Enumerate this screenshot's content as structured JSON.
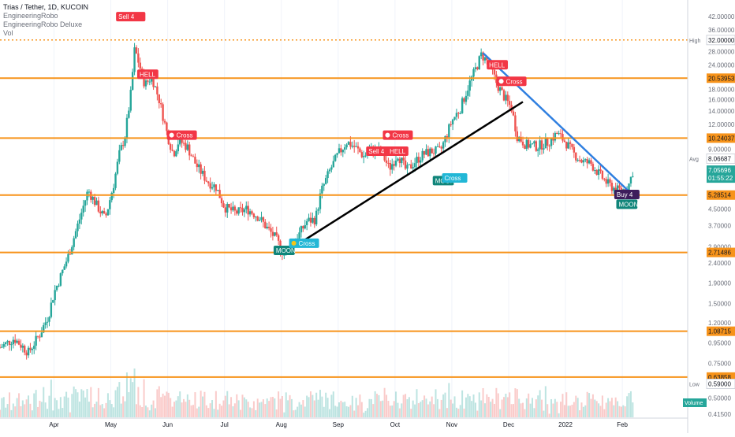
{
  "header": {
    "symbol_line": "Trias / Tether, 1D, KUCOIN",
    "indicators": [
      "EngineeringRobo",
      "EngineeringRobo Deluxe",
      "Vol"
    ]
  },
  "colors": {
    "up": "#26a69a",
    "down": "#ef5350",
    "level": "#f7931a",
    "high_line": "#f7931a",
    "trend_black": "#000000",
    "trend_blue": "#2f7fe0",
    "label_red": "#f23645",
    "label_teal": "#10857a",
    "label_cyan": "#22b7d6",
    "label_purple": "#3d1d5c"
  },
  "chart_data": {
    "type": "candlestick",
    "scale": "log",
    "ylim": [
      0.4,
      50
    ],
    "y_ticks": [
      "42.00000",
      "36.00000",
      "32.00000",
      "28.00000",
      "24.00000",
      "20.53953",
      "18.00000",
      "16.00000",
      "14.00000",
      "12.00000",
      "10.24037",
      "9.00000",
      "8.06687",
      "7.05696",
      "5.28514",
      "4.50000",
      "3.70000",
      "2.90000",
      "2.71486",
      "2.40000",
      "1.90000",
      "1.50000",
      "1.20000",
      "1.08715",
      "0.95000",
      "0.75000",
      "0.63858",
      "0.59000",
      "0.50000",
      "0.41500"
    ],
    "x_ticks": [
      "Apr",
      "May",
      "Jun",
      "Jul",
      "Aug",
      "Sep",
      "Oct",
      "Nov",
      "Dec",
      "2022",
      "Feb"
    ],
    "x_tick_months": [
      3,
      4,
      5,
      6,
      7,
      8,
      9,
      10,
      11,
      12,
      13
    ],
    "x_range_months": [
      2.05,
      14.15
    ],
    "levels": [
      20.53953,
      10.24037,
      5.28514,
      2.71486,
      1.08715,
      0.63858
    ],
    "high": {
      "label": "High",
      "value": "32.00000",
      "price": 32.0
    },
    "low": {
      "label": "Low",
      "value": "0.59000"
    },
    "avg": {
      "label": "Avg",
      "value": "8.06687"
    },
    "last": {
      "value": "7.05696",
      "countdown": "01:55:22"
    },
    "volume_label": "Volume",
    "price_path": [
      [
        2.05,
        0.9
      ],
      [
        2.3,
        1.0
      ],
      [
        2.55,
        0.85
      ],
      [
        2.75,
        1.05
      ],
      [
        2.9,
        1.3
      ],
      [
        3.0,
        1.7
      ],
      [
        3.1,
        2.0
      ],
      [
        3.25,
        2.6
      ],
      [
        3.45,
        4.0
      ],
      [
        3.6,
        5.6
      ],
      [
        3.75,
        4.7
      ],
      [
        3.9,
        4.0
      ],
      [
        4.05,
        6.0
      ],
      [
        4.15,
        8.5
      ],
      [
        4.25,
        10.5
      ],
      [
        4.35,
        17.0
      ],
      [
        4.42,
        29.0
      ],
      [
        4.5,
        24.0
      ],
      [
        4.6,
        19.0
      ],
      [
        4.72,
        21.0
      ],
      [
        4.85,
        16.0
      ],
      [
        5.0,
        10.5
      ],
      [
        5.1,
        8.5
      ],
      [
        5.2,
        10.0
      ],
      [
        5.35,
        9.2
      ],
      [
        5.5,
        7.5
      ],
      [
        5.7,
        6.2
      ],
      [
        5.85,
        5.8
      ],
      [
        6.0,
        4.6
      ],
      [
        6.2,
        4.3
      ],
      [
        6.4,
        4.5
      ],
      [
        6.6,
        4.1
      ],
      [
        6.75,
        3.6
      ],
      [
        6.9,
        3.2
      ],
      [
        7.05,
        2.65
      ],
      [
        7.15,
        2.95
      ],
      [
        7.3,
        3.3
      ],
      [
        7.45,
        3.9
      ],
      [
        7.6,
        4.0
      ],
      [
        7.7,
        5.5
      ],
      [
        7.85,
        7.0
      ],
      [
        8.0,
        8.5
      ],
      [
        8.15,
        9.8
      ],
      [
        8.3,
        9.2
      ],
      [
        8.45,
        8.3
      ],
      [
        8.6,
        9.0
      ],
      [
        8.75,
        8.8
      ],
      [
        8.9,
        7.2
      ],
      [
        9.05,
        8.5
      ],
      [
        9.2,
        7.0
      ],
      [
        9.35,
        7.8
      ],
      [
        9.5,
        8.5
      ],
      [
        9.65,
        8.8
      ],
      [
        9.8,
        8.8
      ],
      [
        9.9,
        10.5
      ],
      [
        10.0,
        12.5
      ],
      [
        10.15,
        14.5
      ],
      [
        10.3,
        19.0
      ],
      [
        10.45,
        24.0
      ],
      [
        10.52,
        27.0
      ],
      [
        10.65,
        24.5
      ],
      [
        10.8,
        19.0
      ],
      [
        10.95,
        16.0
      ],
      [
        11.05,
        14.5
      ],
      [
        11.15,
        10.5
      ],
      [
        11.3,
        9.5
      ],
      [
        11.5,
        9.3
      ],
      [
        11.7,
        9.8
      ],
      [
        11.85,
        10.8
      ],
      [
        12.0,
        9.8
      ],
      [
        12.15,
        8.5
      ],
      [
        12.3,
        7.8
      ],
      [
        12.45,
        7.6
      ],
      [
        12.6,
        6.7
      ],
      [
        12.75,
        6.0
      ],
      [
        12.9,
        5.6
      ],
      [
        13.0,
        5.6
      ],
      [
        13.1,
        5.8
      ],
      [
        13.2,
        7.2
      ]
    ],
    "trendlines": [
      {
        "name": "black",
        "from": [
          7.05,
          2.7
        ],
        "to": [
          11.25,
          15.6
        ]
      },
      {
        "name": "blue",
        "from": [
          10.55,
          27.5
        ],
        "to": [
          13.15,
          5.4
        ]
      }
    ],
    "annotations": [
      {
        "text": "Sell 4",
        "t": 4.35,
        "p": 42.0,
        "style": "red"
      },
      {
        "text": "HELL",
        "t": 4.65,
        "p": 21.5,
        "style": "red"
      },
      {
        "text": "Cross",
        "t": 5.25,
        "p": 10.6,
        "skull": true,
        "style": "red"
      },
      {
        "text": "MOON",
        "t": 7.05,
        "p": 2.78,
        "style": "teal"
      },
      {
        "text": "Cross",
        "t": 7.4,
        "p": 3.02,
        "coin": true,
        "style": "cyan"
      },
      {
        "text": "Sell 4",
        "t": 8.75,
        "p": 8.8,
        "style": "red"
      },
      {
        "text": "HELL",
        "t": 9.05,
        "p": 8.8,
        "style": "red"
      },
      {
        "text": "Cross",
        "t": 9.05,
        "p": 10.6,
        "skull": true,
        "style": "red"
      },
      {
        "text": "MOON",
        "t": 9.85,
        "p": 6.25,
        "style": "teal"
      },
      {
        "text": "Cross",
        "t": 10.05,
        "p": 6.45,
        "style": "cyan"
      },
      {
        "text": "HELL",
        "t": 10.8,
        "p": 24.0,
        "style": "red"
      },
      {
        "text": "Cross",
        "t": 11.05,
        "p": 19.8,
        "skull": true,
        "style": "red"
      },
      {
        "text": "Buy 4",
        "t": 13.08,
        "p": 5.32,
        "style": "purple"
      },
      {
        "text": "MOON",
        "t": 13.08,
        "p": 4.75,
        "style": "teal"
      }
    ]
  }
}
